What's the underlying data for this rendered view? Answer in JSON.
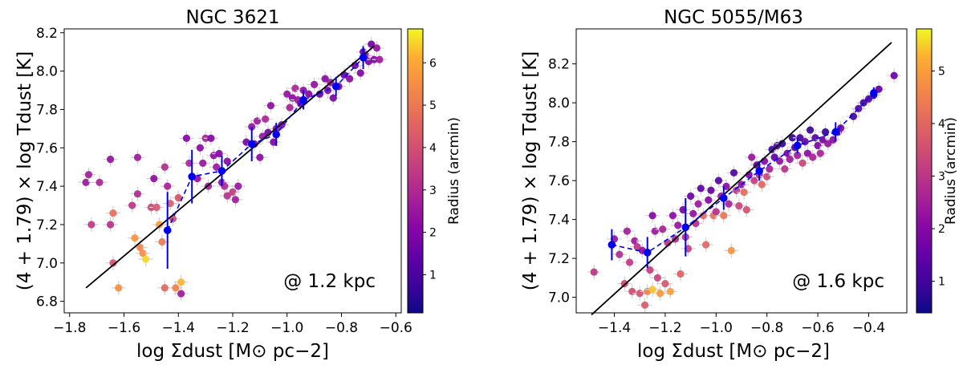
{
  "chart_data": [
    {
      "type": "scatter",
      "title": "NGC 3621",
      "xlabel": "log Σdust [M⊙ pc−2]",
      "ylabel": "(4 + 1.79) × log Tdust [K]",
      "xlim": [
        -1.82,
        -0.58
      ],
      "ylim": [
        6.74,
        8.22
      ],
      "xticks": [
        -1.8,
        -1.6,
        -1.4,
        -1.2,
        -1.0,
        -0.8,
        -0.6
      ],
      "xtick_labels": [
        "−1.8",
        "−1.6",
        "−1.4",
        "−1.2",
        "−1.0",
        "−0.8",
        "−0.6"
      ],
      "yticks": [
        6.8,
        7.0,
        7.2,
        7.4,
        7.6,
        7.8,
        8.0,
        8.2
      ],
      "ytick_labels": [
        "6.8",
        "7.0",
        "7.2",
        "7.4",
        "7.6",
        "7.8",
        "8.0",
        "8.2"
      ],
      "annotation": "@ 1.2 kpc",
      "colorbar": {
        "label": "Radius (arcmin)",
        "range": [
          0.1,
          6.8
        ],
        "ticks": [
          1,
          2,
          3,
          4,
          5,
          6
        ],
        "tick_labels": [
          "1",
          "2",
          "3",
          "4",
          "5",
          "6"
        ],
        "colormap": "plasma"
      },
      "fit_line": [
        [
          -1.74,
          6.87
        ],
        [
          -0.68,
          8.13
        ]
      ],
      "binned": {
        "x": [
          -1.44,
          -1.35,
          -1.24,
          -1.13,
          -1.04,
          -0.94,
          -0.82,
          -0.72
        ],
        "y": [
          7.17,
          7.45,
          7.48,
          7.62,
          7.67,
          7.85,
          7.92,
          8.07
        ],
        "yerr": [
          0.2,
          0.14,
          0.08,
          0.09,
          0.06,
          0.05,
          0.05,
          0.06
        ]
      },
      "points": [
        {
          "x": -1.74,
          "y": 7.42,
          "r": 2.5
        },
        {
          "x": -1.73,
          "y": 7.46,
          "r": 2.7
        },
        {
          "x": -1.72,
          "y": 7.2,
          "r": 3.4
        },
        {
          "x": -1.69,
          "y": 7.42,
          "r": 2.9
        },
        {
          "x": -1.65,
          "y": 7.54,
          "r": 2.4
        },
        {
          "x": -1.65,
          "y": 7.2,
          "r": 3.2
        },
        {
          "x": -1.64,
          "y": 7.26,
          "r": 4.8
        },
        {
          "x": -1.64,
          "y": 7.0,
          "r": 4.0
        },
        {
          "x": -1.62,
          "y": 6.87,
          "r": 5.5
        },
        {
          "x": -1.57,
          "y": 7.3,
          "r": 3.3
        },
        {
          "x": -1.56,
          "y": 7.13,
          "r": 5.6
        },
        {
          "x": -1.55,
          "y": 7.55,
          "r": 2.6
        },
        {
          "x": -1.55,
          "y": 7.36,
          "r": 3.0
        },
        {
          "x": -1.54,
          "y": 7.08,
          "r": 5.2
        },
        {
          "x": -1.53,
          "y": 7.05,
          "r": 5.5
        },
        {
          "x": -1.52,
          "y": 7.02,
          "r": 6.5
        },
        {
          "x": -1.5,
          "y": 7.29,
          "r": 3.8
        },
        {
          "x": -1.49,
          "y": 7.44,
          "r": 2.3
        },
        {
          "x": -1.48,
          "y": 7.29,
          "r": 4.2
        },
        {
          "x": -1.47,
          "y": 7.2,
          "r": 5.8
        },
        {
          "x": -1.46,
          "y": 7.11,
          "r": 5.0
        },
        {
          "x": -1.45,
          "y": 7.5,
          "r": 3.1
        },
        {
          "x": -1.45,
          "y": 6.87,
          "r": 4.6
        },
        {
          "x": -1.44,
          "y": 7.4,
          "r": 2.8
        },
        {
          "x": -1.43,
          "y": 7.31,
          "r": 4.4
        },
        {
          "x": -1.42,
          "y": 7.23,
          "r": 3.9
        },
        {
          "x": -1.41,
          "y": 6.87,
          "r": 5.2
        },
        {
          "x": -1.4,
          "y": 7.34,
          "r": 4.1
        },
        {
          "x": -1.39,
          "y": 6.9,
          "r": 6.2
        },
        {
          "x": -1.39,
          "y": 6.84,
          "r": 2.6
        },
        {
          "x": -1.37,
          "y": 7.65,
          "r": 2.1
        },
        {
          "x": -1.36,
          "y": 7.52,
          "r": 2.9
        },
        {
          "x": -1.33,
          "y": 7.44,
          "r": 2.4
        },
        {
          "x": -1.32,
          "y": 7.6,
          "r": 2.2
        },
        {
          "x": -1.31,
          "y": 7.52,
          "r": 2.5
        },
        {
          "x": -1.3,
          "y": 7.65,
          "r": 2.8
        },
        {
          "x": -1.29,
          "y": 7.4,
          "r": 2.7
        },
        {
          "x": -1.28,
          "y": 7.65,
          "r": 2.0
        },
        {
          "x": -1.27,
          "y": 7.56,
          "r": 2.3
        },
        {
          "x": -1.26,
          "y": 7.5,
          "r": 2.6
        },
        {
          "x": -1.25,
          "y": 7.57,
          "r": 2.1
        },
        {
          "x": -1.24,
          "y": 7.42,
          "r": 2.4
        },
        {
          "x": -1.23,
          "y": 7.4,
          "r": 3.0
        },
        {
          "x": -1.22,
          "y": 7.35,
          "r": 3.2
        },
        {
          "x": -1.22,
          "y": 7.53,
          "r": 2.2
        },
        {
          "x": -1.2,
          "y": 7.37,
          "r": 3.5
        },
        {
          "x": -1.19,
          "y": 7.33,
          "r": 2.7
        },
        {
          "x": -1.18,
          "y": 7.4,
          "r": 2.5
        },
        {
          "x": -1.15,
          "y": 7.63,
          "r": 1.8
        },
        {
          "x": -1.13,
          "y": 7.71,
          "r": 2.4
        },
        {
          "x": -1.12,
          "y": 7.62,
          "r": 2.0
        },
        {
          "x": -1.11,
          "y": 7.74,
          "r": 2.6
        },
        {
          "x": -1.1,
          "y": 7.55,
          "r": 2.2
        },
        {
          "x": -1.09,
          "y": 7.66,
          "r": 2.4
        },
        {
          "x": -1.08,
          "y": 7.75,
          "r": 2.9
        },
        {
          "x": -1.07,
          "y": 7.68,
          "r": 1.8
        },
        {
          "x": -1.06,
          "y": 7.82,
          "r": 2.3
        },
        {
          "x": -1.05,
          "y": 7.63,
          "r": 2.1
        },
        {
          "x": -1.04,
          "y": 7.7,
          "r": 2.5
        },
        {
          "x": -1.02,
          "y": 7.72,
          "r": 2.0
        },
        {
          "x": -1.0,
          "y": 7.88,
          "r": 2.4
        },
        {
          "x": -0.99,
          "y": 7.81,
          "r": 2.8
        },
        {
          "x": -0.98,
          "y": 7.86,
          "r": 2.2
        },
        {
          "x": -0.97,
          "y": 7.91,
          "r": 2.9
        },
        {
          "x": -0.96,
          "y": 7.85,
          "r": 2.5
        },
        {
          "x": -0.95,
          "y": 7.83,
          "r": 1.7
        },
        {
          "x": -0.94,
          "y": 7.9,
          "r": 2.3
        },
        {
          "x": -0.92,
          "y": 7.88,
          "r": 2.1
        },
        {
          "x": -0.9,
          "y": 7.93,
          "r": 2.4
        },
        {
          "x": -0.88,
          "y": 7.88,
          "r": 1.6
        },
        {
          "x": -0.86,
          "y": 7.96,
          "r": 2.2
        },
        {
          "x": -0.85,
          "y": 7.9,
          "r": 2.0
        },
        {
          "x": -0.84,
          "y": 7.94,
          "r": 2.5
        },
        {
          "x": -0.83,
          "y": 7.86,
          "r": 1.9
        },
        {
          "x": -0.81,
          "y": 7.92,
          "r": 2.1
        },
        {
          "x": -0.79,
          "y": 7.98,
          "r": 1.5
        },
        {
          "x": -0.77,
          "y": 7.96,
          "r": 2.2
        },
        {
          "x": -0.75,
          "y": 8.03,
          "r": 1.8
        },
        {
          "x": -0.73,
          "y": 7.99,
          "r": 2.0
        },
        {
          "x": -0.72,
          "y": 8.1,
          "r": 1.6
        },
        {
          "x": -0.71,
          "y": 8.08,
          "r": 2.3
        },
        {
          "x": -0.7,
          "y": 8.05,
          "r": 1.9
        },
        {
          "x": -0.69,
          "y": 8.14,
          "r": 1.7
        },
        {
          "x": -0.68,
          "y": 8.06,
          "r": 2.1
        },
        {
          "x": -0.67,
          "y": 8.12,
          "r": 2.4
        },
        {
          "x": -0.66,
          "y": 8.06,
          "r": 2.6
        }
      ]
    },
    {
      "type": "scatter",
      "title": "NGC 5055/M63",
      "xlabel": "log Σdust [M⊙ pc−2]",
      "ylabel": "(4 + 1.79) × log Tdust [K]",
      "xlim": [
        -1.55,
        -0.25
      ],
      "ylim": [
        6.92,
        8.38
      ],
      "xticks": [
        -1.4,
        -1.2,
        -1.0,
        -0.8,
        -0.6,
        -0.4
      ],
      "xtick_labels": [
        "−1.4",
        "−1.2",
        "−1.0",
        "−0.8",
        "−0.6",
        "−0.4"
      ],
      "yticks": [
        7.0,
        7.2,
        7.4,
        7.6,
        7.8,
        8.0,
        8.2
      ],
      "ytick_labels": [
        "7.0",
        "7.2",
        "7.4",
        "7.6",
        "7.8",
        "8.0",
        "8.2"
      ],
      "annotation": "@ 1.6 kpc",
      "colorbar": {
        "label": "Radius (arcmin)",
        "range": [
          0.4,
          5.8
        ],
        "ticks": [
          1,
          2,
          3,
          4,
          5
        ],
        "tick_labels": [
          "1",
          "2",
          "3",
          "4",
          "5"
        ],
        "colormap": "plasma"
      },
      "fit_line": [
        [
          -1.49,
          6.91
        ],
        [
          -0.31,
          8.31
        ]
      ],
      "binned": {
        "x": [
          -1.41,
          -1.27,
          -1.12,
          -0.97,
          -0.83,
          -0.68,
          -0.53,
          -0.38
        ],
        "y": [
          7.27,
          7.23,
          7.36,
          7.51,
          7.65,
          7.78,
          7.85,
          8.05
        ],
        "yerr": [
          0.08,
          0.08,
          0.15,
          0.06,
          0.05,
          0.04,
          0.05,
          0.03
        ]
      },
      "points": [
        {
          "x": -1.48,
          "y": 7.13,
          "r": 3.0
        },
        {
          "x": -1.4,
          "y": 7.3,
          "r": 2.3
        },
        {
          "x": -1.38,
          "y": 7.22,
          "r": 2.8
        },
        {
          "x": -1.36,
          "y": 7.07,
          "r": 3.4
        },
        {
          "x": -1.35,
          "y": 7.34,
          "r": 2.5
        },
        {
          "x": -1.34,
          "y": 7.18,
          "r": 3.1
        },
        {
          "x": -1.33,
          "y": 7.03,
          "r": 3.5
        },
        {
          "x": -1.32,
          "y": 7.29,
          "r": 2.4
        },
        {
          "x": -1.31,
          "y": 7.26,
          "r": 3.0
        },
        {
          "x": -1.3,
          "y": 7.02,
          "r": 3.6
        },
        {
          "x": -1.29,
          "y": 7.24,
          "r": 2.2
        },
        {
          "x": -1.28,
          "y": 6.96,
          "r": 3.8
        },
        {
          "x": -1.27,
          "y": 7.03,
          "r": 4.5
        },
        {
          "x": -1.26,
          "y": 7.14,
          "r": 3.2
        },
        {
          "x": -1.25,
          "y": 7.04,
          "r": 5.4
        },
        {
          "x": -1.25,
          "y": 7.42,
          "r": 2.0
        },
        {
          "x": -1.24,
          "y": 7.34,
          "r": 2.4
        },
        {
          "x": -1.23,
          "y": 7.1,
          "r": 3.3
        },
        {
          "x": -1.22,
          "y": 7.02,
          "r": 4.9
        },
        {
          "x": -1.21,
          "y": 7.35,
          "r": 2.6
        },
        {
          "x": -1.2,
          "y": 7.07,
          "r": 3.7
        },
        {
          "x": -1.19,
          "y": 7.28,
          "r": 3.0
        },
        {
          "x": -1.18,
          "y": 7.03,
          "r": 5.0
        },
        {
          "x": -1.17,
          "y": 7.42,
          "r": 2.1
        },
        {
          "x": -1.16,
          "y": 7.3,
          "r": 2.7
        },
        {
          "x": -1.15,
          "y": 7.37,
          "r": 2.3
        },
        {
          "x": -1.14,
          "y": 7.12,
          "r": 3.9
        },
        {
          "x": -1.13,
          "y": 7.45,
          "r": 1.8
        },
        {
          "x": -1.12,
          "y": 7.31,
          "r": 2.9
        },
        {
          "x": -1.11,
          "y": 7.25,
          "r": 3.2
        },
        {
          "x": -1.1,
          "y": 7.52,
          "r": 1.6
        },
        {
          "x": -1.09,
          "y": 7.43,
          "r": 2.2
        },
        {
          "x": -1.08,
          "y": 7.38,
          "r": 2.8
        },
        {
          "x": -1.07,
          "y": 7.48,
          "r": 2.4
        },
        {
          "x": -1.06,
          "y": 7.56,
          "r": 1.4
        },
        {
          "x": -1.05,
          "y": 7.42,
          "r": 4.1
        },
        {
          "x": -1.04,
          "y": 7.27,
          "r": 4.0
        },
        {
          "x": -1.03,
          "y": 7.5,
          "r": 2.0
        },
        {
          "x": -1.02,
          "y": 7.55,
          "r": 1.5
        },
        {
          "x": -1.01,
          "y": 7.42,
          "r": 4.2
        },
        {
          "x": -1.0,
          "y": 7.44,
          "r": 2.9
        },
        {
          "x": -0.99,
          "y": 7.6,
          "r": 1.3
        },
        {
          "x": -0.98,
          "y": 7.52,
          "r": 2.3
        },
        {
          "x": -0.97,
          "y": 7.42,
          "r": 4.3
        },
        {
          "x": -0.96,
          "y": 7.57,
          "r": 2.1
        },
        {
          "x": -0.95,
          "y": 7.48,
          "r": 2.6
        },
        {
          "x": -0.94,
          "y": 7.24,
          "r": 4.8
        },
        {
          "x": -0.93,
          "y": 7.64,
          "r": 1.2
        },
        {
          "x": -0.92,
          "y": 7.55,
          "r": 3.0
        },
        {
          "x": -0.91,
          "y": 7.47,
          "r": 3.3
        },
        {
          "x": -0.9,
          "y": 7.58,
          "r": 2.2
        },
        {
          "x": -0.89,
          "y": 7.54,
          "r": 4.1
        },
        {
          "x": -0.88,
          "y": 7.45,
          "r": 3.6
        },
        {
          "x": -0.87,
          "y": 7.63,
          "r": 1.9
        },
        {
          "x": -0.86,
          "y": 7.72,
          "r": 2.3
        },
        {
          "x": -0.85,
          "y": 7.6,
          "r": 3.2
        },
        {
          "x": -0.84,
          "y": 7.68,
          "r": 1.6
        },
        {
          "x": -0.83,
          "y": 7.63,
          "r": 2.8
        },
        {
          "x": -0.82,
          "y": 7.58,
          "r": 4.0
        },
        {
          "x": -0.81,
          "y": 7.7,
          "r": 2.0
        },
        {
          "x": -0.8,
          "y": 7.62,
          "r": 3.4
        },
        {
          "x": -0.79,
          "y": 7.66,
          "r": 2.5
        },
        {
          "x": -0.78,
          "y": 7.76,
          "r": 1.0
        },
        {
          "x": -0.77,
          "y": 7.72,
          "r": 1.5
        },
        {
          "x": -0.76,
          "y": 7.78,
          "r": 1.2
        },
        {
          "x": -0.75,
          "y": 7.7,
          "r": 2.2
        },
        {
          "x": -0.74,
          "y": 7.79,
          "r": 0.8
        },
        {
          "x": -0.73,
          "y": 7.66,
          "r": 2.9
        },
        {
          "x": -0.72,
          "y": 7.74,
          "r": 1.8
        },
        {
          "x": -0.71,
          "y": 7.71,
          "r": 2.4
        },
        {
          "x": -0.7,
          "y": 7.82,
          "r": 0.9
        },
        {
          "x": -0.69,
          "y": 7.77,
          "r": 1.3
        },
        {
          "x": -0.68,
          "y": 7.73,
          "r": 2.5
        },
        {
          "x": -0.67,
          "y": 7.82,
          "r": 1.1
        },
        {
          "x": -0.66,
          "y": 7.69,
          "r": 3.3
        },
        {
          "x": -0.65,
          "y": 7.8,
          "r": 1.6
        },
        {
          "x": -0.64,
          "y": 7.74,
          "r": 2.1
        },
        {
          "x": -0.63,
          "y": 7.86,
          "r": 0.9
        },
        {
          "x": -0.62,
          "y": 7.72,
          "r": 2.6
        },
        {
          "x": -0.61,
          "y": 7.82,
          "r": 1.4
        },
        {
          "x": -0.6,
          "y": 7.78,
          "r": 1.9
        },
        {
          "x": -0.59,
          "y": 7.74,
          "r": 2.6
        },
        {
          "x": -0.58,
          "y": 7.81,
          "r": 1.7
        },
        {
          "x": -0.57,
          "y": 7.85,
          "r": 0.8
        },
        {
          "x": -0.56,
          "y": 7.79,
          "r": 2.3
        },
        {
          "x": -0.54,
          "y": 7.81,
          "r": 2.1
        },
        {
          "x": -0.52,
          "y": 7.85,
          "r": 1.3
        },
        {
          "x": -0.51,
          "y": 7.87,
          "r": 1.9
        },
        {
          "x": -0.46,
          "y": 7.93,
          "r": 1.1
        },
        {
          "x": -0.44,
          "y": 7.97,
          "r": 1.4
        },
        {
          "x": -0.42,
          "y": 8.0,
          "r": 1.0
        },
        {
          "x": -0.4,
          "y": 8.02,
          "r": 1.3
        },
        {
          "x": -0.38,
          "y": 8.04,
          "r": 0.9
        },
        {
          "x": -0.36,
          "y": 8.07,
          "r": 1.5
        },
        {
          "x": -0.3,
          "y": 8.14,
          "r": 1.6
        }
      ]
    }
  ]
}
